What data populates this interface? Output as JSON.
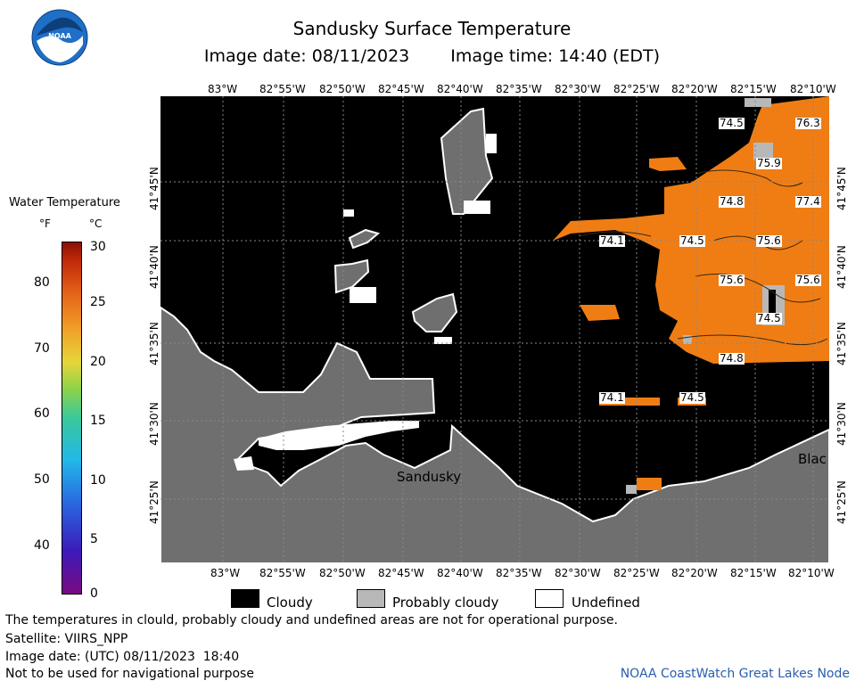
{
  "header": {
    "title": "Sandusky Surface Temperature",
    "image_date": "Image date: 08/11/2023",
    "image_time": "Image time: 14:40 (EDT)"
  },
  "logo": {
    "text": "NOAA"
  },
  "map": {
    "lon_ticks": [
      "83°W",
      "82°55'W",
      "82°50'W",
      "82°45'W",
      "82°40'W",
      "82°35'W",
      "82°30'W",
      "82°25'W",
      "82°20'W",
      "82°15'W",
      "82°10'W"
    ],
    "lat_ticks": [
      "41°45'N",
      "41°40'N",
      "41°35'N",
      "41°30'N",
      "41°25'N"
    ],
    "city_labels": [
      "Sandusky",
      "Blac"
    ],
    "temperature_labels": [
      "74.5",
      "76.3",
      "75.9",
      "74.8",
      "77.4",
      "74.1",
      "74.5",
      "75.6",
      "75.6",
      "75.6",
      "74.5",
      "74.8",
      "74.1",
      "74.5"
    ],
    "colors": {
      "land": "#6f6f6f",
      "cloud": "#000000",
      "probably_cloudy": "#b8b8b8",
      "undefined": "#ffffff",
      "warm_water": "#f07d14"
    }
  },
  "legend": {
    "title": "Water Temperature",
    "f_unit": "°F",
    "c_unit": "°C",
    "f_ticks": [
      "80",
      "70",
      "60",
      "50",
      "40"
    ],
    "c_ticks": [
      "30",
      "25",
      "20",
      "15",
      "10",
      "5",
      "0"
    ],
    "key": [
      "Cloudy",
      "Probably cloudy",
      "Undefined"
    ]
  },
  "footer": {
    "note": "The temperatures in clould, probably cloudy and undefined areas are not for operational purpose.",
    "satellite": "Satellite: VIIRS_NPP",
    "utc_date": "Image date: (UTC) 08/11/2023  18:40",
    "nav_warning": "Not to be used for navigational purpose",
    "credit": "NOAA CoastWatch Great Lakes Node"
  }
}
